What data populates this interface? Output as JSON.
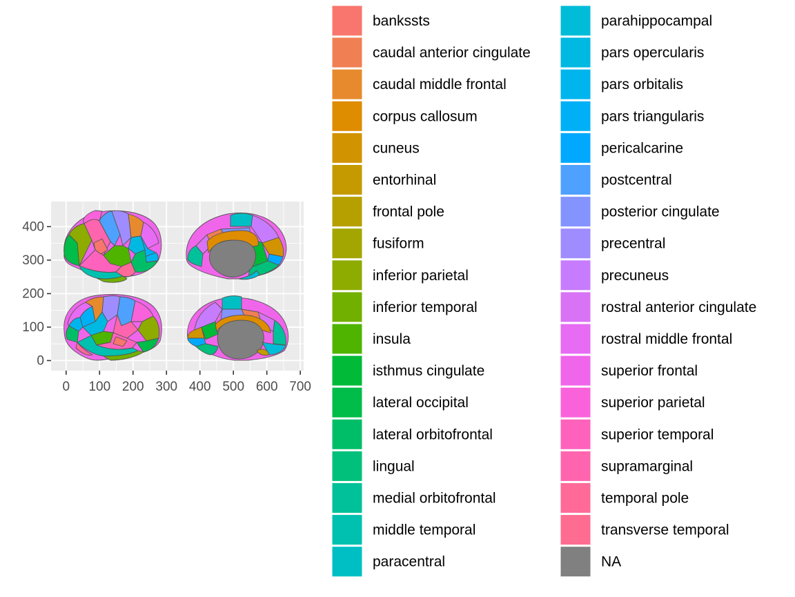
{
  "chart_data": {
    "type": "map",
    "title": "",
    "xlabel": "",
    "ylabel": "",
    "xlim": [
      -45,
      710
    ],
    "ylim": [
      -30,
      475
    ],
    "x_ticks": [
      0,
      100,
      200,
      300,
      400,
      500,
      600,
      700
    ],
    "y_ticks": [
      0,
      100,
      200,
      300,
      400
    ],
    "grid": true,
    "legend_position": "right",
    "legend": [
      {
        "label": "bankssts",
        "color": "#F8766D"
      },
      {
        "label": "caudal anterior cingulate",
        "color": "#F07F54"
      },
      {
        "label": "caudal middle frontal",
        "color": "#E78A2E"
      },
      {
        "label": "corpus callosum",
        "color": "#DE8C00"
      },
      {
        "label": "cuneus",
        "color": "#D19400"
      },
      {
        "label": "entorhinal",
        "color": "#C49A00"
      },
      {
        "label": "frontal pole",
        "color": "#B5A000"
      },
      {
        "label": "fusiform",
        "color": "#A3A500"
      },
      {
        "label": "inferior parietal",
        "color": "#8EAB00"
      },
      {
        "label": "inferior temporal",
        "color": "#72B000"
      },
      {
        "label": "insula",
        "color": "#4FB400"
      },
      {
        "label": "isthmus cingulate",
        "color": "#00BA38"
      },
      {
        "label": "lateral occipital",
        "color": "#00BC48"
      },
      {
        "label": "lateral orbitofrontal",
        "color": "#00BE67"
      },
      {
        "label": "lingual",
        "color": "#00C07B"
      },
      {
        "label": "medial orbitofrontal",
        "color": "#00C19A"
      },
      {
        "label": "middle temporal",
        "color": "#00C0AF"
      },
      {
        "label": "paracentral",
        "color": "#00BFC4"
      },
      {
        "label": "parahippocampal",
        "color": "#00BCD8"
      },
      {
        "label": "pars opercularis",
        "color": "#00B9E3"
      },
      {
        "label": "pars orbitalis",
        "color": "#00B5EE"
      },
      {
        "label": "pars triangularis",
        "color": "#00B0F6"
      },
      {
        "label": "pericalcarine",
        "color": "#00A9FF"
      },
      {
        "label": "postcentral",
        "color": "#4FA1FF"
      },
      {
        "label": "posterior cingulate",
        "color": "#8494FF"
      },
      {
        "label": "precentral",
        "color": "#9F8CFF"
      },
      {
        "label": "precuneus",
        "color": "#C77CFF"
      },
      {
        "label": "rostral anterior cingulate",
        "color": "#D973F5"
      },
      {
        "label": "rostral middle frontal",
        "color": "#E76BF3"
      },
      {
        "label": "superior frontal",
        "color": "#F066EA"
      },
      {
        "label": "superior parietal",
        "color": "#FA62DB"
      },
      {
        "label": "superior temporal",
        "color": "#FF62BC"
      },
      {
        "label": "supramarginal",
        "color": "#FF65AE"
      },
      {
        "label": "temporal pole",
        "color": "#FF6A98"
      },
      {
        "label": "transverse temporal",
        "color": "#FF6C91"
      },
      {
        "label": "NA",
        "color": "#808080"
      }
    ],
    "panel_background": "#EBEBEB",
    "gridline_color": "#FFFFFF"
  }
}
